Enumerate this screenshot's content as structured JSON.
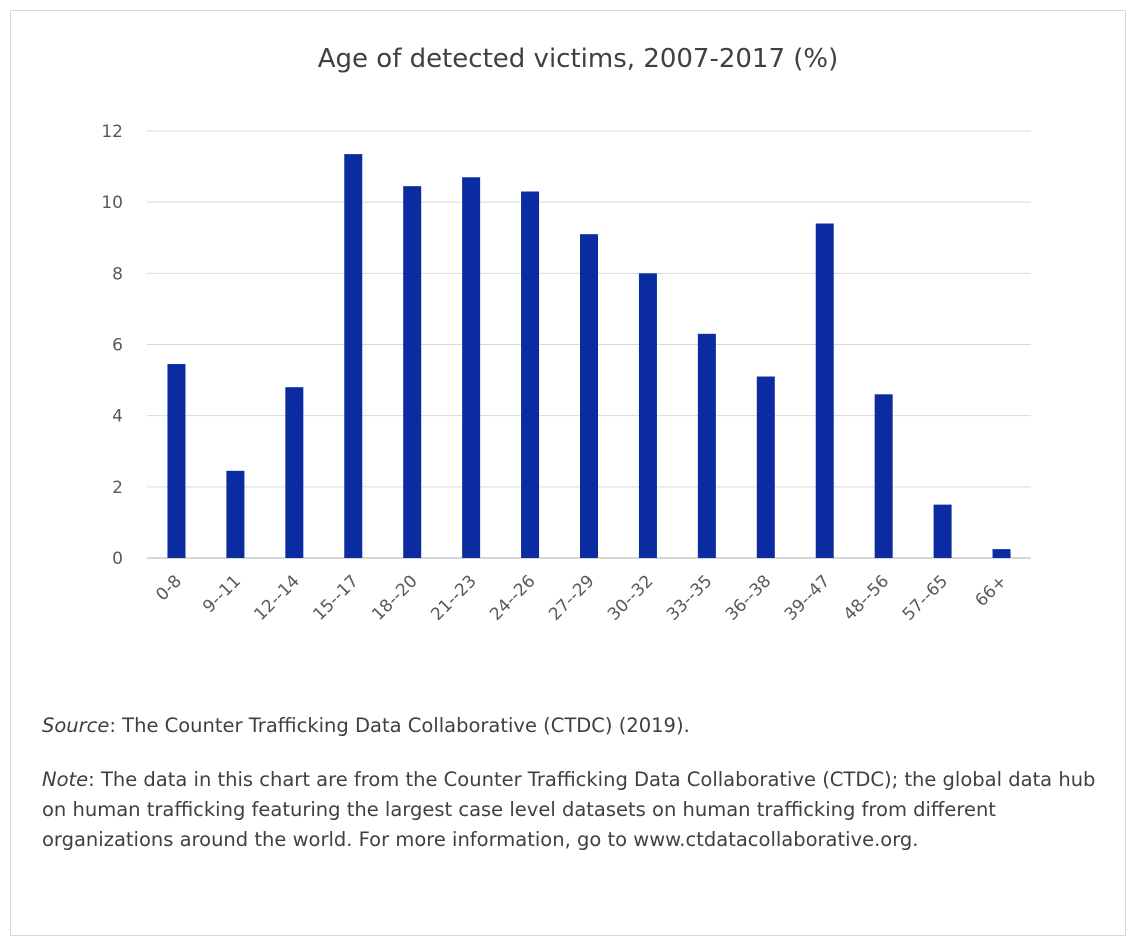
{
  "chart_data": {
    "type": "bar",
    "title": "Age of detected victims, 2007-2017 (%)",
    "categories": [
      "0-8",
      "9--11",
      "12--14",
      "15--17",
      "18--20",
      "21--23",
      "24--26",
      "27--29",
      "30--32",
      "33--35",
      "36--38",
      "39--47",
      "48--56",
      "57--65",
      "66+"
    ],
    "values": [
      5.45,
      2.45,
      4.8,
      11.35,
      10.45,
      10.7,
      10.3,
      9.1,
      8.0,
      6.3,
      5.1,
      9.4,
      4.6,
      1.5,
      0.25
    ],
    "xlabel": "",
    "ylabel": "",
    "ylim": [
      0,
      12
    ],
    "yticks": [
      0,
      2,
      4,
      6,
      8,
      10,
      12
    ],
    "grid": true,
    "legend": "none",
    "bar_color": "#0a2ca0"
  },
  "notes": {
    "source_label": "Source",
    "source_text": ":  The Counter Trafficking Data Collaborative (CTDC) (2019).",
    "note_label": "Note",
    "note_text": ":  The data in this chart are from the Counter Trafficking Data Collaborative (CTDC); the global data hub on human trafficking featuring the  largest case level datasets on human trafficking from different organizations around the world. For more information, go to www.ctdatacollaborative.org."
  }
}
